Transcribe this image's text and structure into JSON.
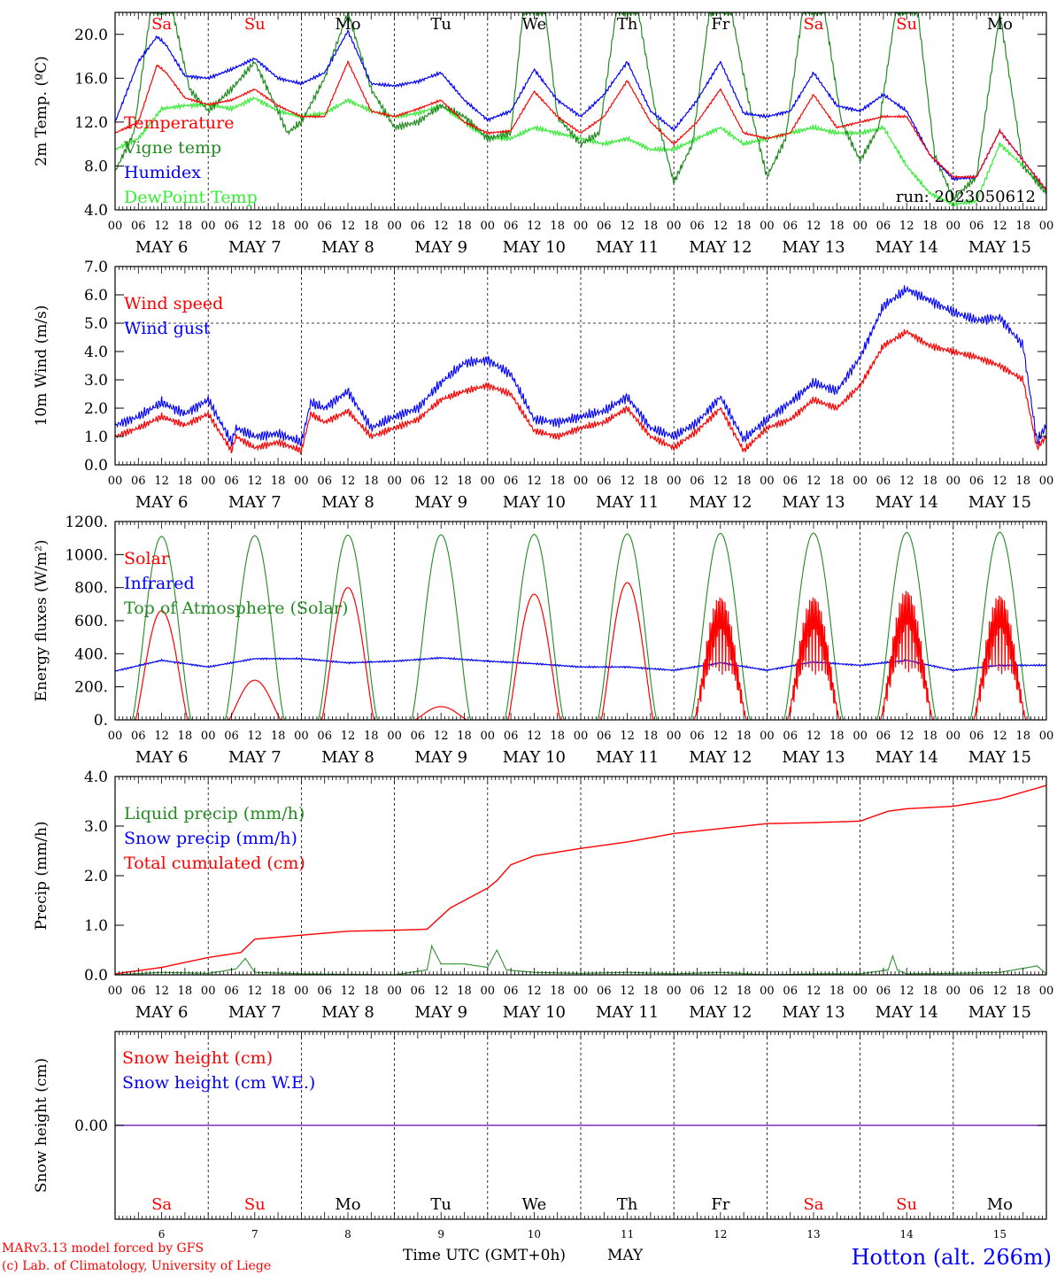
{
  "colors": {
    "red": "#ff0000",
    "green": "#228b22",
    "blue": "#0000ff",
    "light_green": "#33ee33",
    "purple": "#7b2fbe",
    "black": "#000000"
  },
  "days": [
    "Sa",
    "Su",
    "Mo",
    "Tu",
    "We",
    "Th",
    "Fr",
    "Sa",
    "Su",
    "Mo"
  ],
  "weekend_days": [
    0,
    1,
    7,
    8
  ],
  "day_numbers": [
    "6",
    "7",
    "8",
    "9",
    "10",
    "11",
    "12",
    "13",
    "14",
    "15"
  ],
  "date_labels": [
    "MAY  6",
    "MAY  7",
    "MAY  8",
    "MAY  9",
    "MAY 10",
    "MAY 11",
    "MAY 12",
    "MAY 13",
    "MAY 14",
    "MAY 15"
  ],
  "hour_ticks": [
    "00",
    "06",
    "12",
    "18"
  ],
  "footer": {
    "model_line1": "MARv3.13 model forced by GFS",
    "model_line2": "(c) Lab. of Climatology, University of Liege",
    "time_axis_label": "Time UTC (GMT+0h)",
    "month": "MAY",
    "station": "Hotton (alt. 266m)"
  },
  "chart_data": [
    {
      "type": "line",
      "id": "temperature",
      "ylabel": "2m Temp. (ºC)",
      "ylim": [
        4.0,
        22.0
      ],
      "yticks": [
        "4.0",
        "8.0",
        "12.0",
        "16.0",
        "20.0"
      ],
      "ytick_values": [
        4,
        8,
        12,
        16,
        20
      ],
      "x_unit": "days since May 6 00 UTC",
      "xlim": [
        0,
        10
      ],
      "annotation": "run: 2023050612",
      "legend": [
        "Temperature",
        "Vigne temp",
        "Humidex",
        "DewPoint Temp"
      ],
      "series": [
        {
          "name": "Temperature",
          "color": "red",
          "x": [
            0,
            0.25,
            0.45,
            0.55,
            0.75,
            1.0,
            1.25,
            1.5,
            1.75,
            2.0,
            2.25,
            2.5,
            2.75,
            3.0,
            3.25,
            3.5,
            3.75,
            4.0,
            4.25,
            4.5,
            4.75,
            5.0,
            5.25,
            5.5,
            5.75,
            6.0,
            6.25,
            6.5,
            6.75,
            7.0,
            7.25,
            7.5,
            7.75,
            8.0,
            8.25,
            8.5,
            8.75,
            9.0,
            9.25,
            9.5,
            9.75,
            10.0
          ],
          "y": [
            11.0,
            12.0,
            17.2,
            16.5,
            14.2,
            13.6,
            14.0,
            15.0,
            13.5,
            12.5,
            12.5,
            17.5,
            13.0,
            12.5,
            13.2,
            14.0,
            12.0,
            11.0,
            11.2,
            14.8,
            12.5,
            11.0,
            12.5,
            15.8,
            12.0,
            10.0,
            12.0,
            15.0,
            11.0,
            10.5,
            11.0,
            14.5,
            11.5,
            12.0,
            12.5,
            12.5,
            9.0,
            7.0,
            7.0,
            11.2,
            8.5,
            5.8
          ]
        },
        {
          "name": "Vigne temp",
          "color": "green",
          "x": [
            0,
            0.2,
            0.38,
            0.5,
            0.62,
            0.8,
            1.0,
            1.25,
            1.5,
            1.75,
            1.85,
            2.0,
            2.25,
            2.5,
            2.75,
            3.0,
            3.25,
            3.5,
            3.75,
            4.0,
            4.25,
            4.38,
            4.5,
            4.62,
            4.75,
            5.0,
            5.2,
            5.38,
            5.5,
            5.62,
            5.8,
            6.0,
            6.2,
            6.38,
            6.5,
            6.62,
            6.8,
            7.0,
            7.2,
            7.38,
            7.5,
            7.62,
            7.8,
            8.0,
            8.2,
            8.38,
            8.5,
            8.62,
            8.8,
            9.0,
            9.25,
            9.5,
            9.75,
            10.0
          ],
          "y": [
            7.5,
            11.0,
            22.0,
            22.0,
            22.0,
            15.0,
            13.0,
            15.0,
            17.5,
            13.0,
            11.0,
            12.0,
            16.0,
            22.0,
            15.0,
            11.5,
            12.0,
            13.5,
            12.5,
            10.5,
            11.0,
            22.0,
            22.0,
            22.0,
            12.5,
            10.0,
            11.0,
            22.0,
            22.0,
            22.0,
            13.0,
            6.5,
            10.0,
            22.0,
            22.0,
            22.0,
            14.0,
            7.0,
            10.5,
            22.0,
            22.0,
            22.0,
            12.0,
            8.5,
            11.5,
            22.0,
            22.0,
            22.0,
            9.0,
            5.0,
            7.0,
            22.0,
            8.0,
            5.5
          ]
        },
        {
          "name": "Humidex",
          "color": "blue",
          "x": [
            0,
            0.25,
            0.45,
            0.55,
            0.75,
            1.0,
            1.25,
            1.5,
            1.75,
            2.0,
            2.25,
            2.5,
            2.75,
            3.0,
            3.25,
            3.5,
            3.75,
            4.0,
            4.25,
            4.5,
            4.75,
            5.0,
            5.25,
            5.5,
            5.75,
            6.0,
            6.25,
            6.5,
            6.75,
            7.0,
            7.25,
            7.5,
            7.75,
            8.0,
            8.25,
            8.5,
            8.75,
            9.0,
            9.25,
            9.5,
            9.75,
            10.0
          ],
          "y": [
            12.0,
            17.5,
            19.8,
            19.0,
            16.2,
            16.0,
            16.8,
            17.8,
            16.0,
            15.5,
            16.5,
            20.3,
            15.5,
            15.3,
            15.7,
            16.5,
            14.0,
            12.2,
            13.0,
            16.8,
            14.0,
            12.5,
            14.5,
            17.5,
            13.0,
            11.3,
            14.0,
            17.5,
            12.8,
            12.5,
            13.0,
            16.5,
            13.5,
            13.0,
            14.5,
            13.0,
            9.0,
            6.8,
            7.0,
            11.2,
            8.5,
            5.8
          ]
        },
        {
          "name": "DewPoint Temp",
          "color": "light_green",
          "x": [
            0,
            0.25,
            0.5,
            0.75,
            1.0,
            1.25,
            1.5,
            1.75,
            2.0,
            2.25,
            2.5,
            2.75,
            3.0,
            3.25,
            3.5,
            3.75,
            4.0,
            4.25,
            4.5,
            4.75,
            5.0,
            5.25,
            5.5,
            5.75,
            6.0,
            6.25,
            6.5,
            6.75,
            7.0,
            7.25,
            7.5,
            7.75,
            8.0,
            8.25,
            8.5,
            8.75,
            9.0,
            9.25,
            9.5,
            9.75,
            10.0
          ],
          "y": [
            9.5,
            10.5,
            13.2,
            13.5,
            13.6,
            13.2,
            14.2,
            13.0,
            12.5,
            12.8,
            14.0,
            13.0,
            12.5,
            12.8,
            13.5,
            12.0,
            10.5,
            10.5,
            11.5,
            11.0,
            10.5,
            10.0,
            10.5,
            9.5,
            9.5,
            10.5,
            11.5,
            10.0,
            10.5,
            11.0,
            11.5,
            11.0,
            11.0,
            11.5,
            8.0,
            5.5,
            4.5,
            4.8,
            10.0,
            8.0,
            5.8
          ]
        }
      ]
    },
    {
      "type": "line",
      "id": "wind",
      "ylabel": "10m Wind (m/s)",
      "ylim": [
        0.0,
        7.0
      ],
      "yticks": [
        "0.0",
        "1.0",
        "2.0",
        "3.0",
        "4.0",
        "5.0",
        "6.0",
        "7.0"
      ],
      "ytick_values": [
        0,
        1,
        2,
        3,
        4,
        5,
        6,
        7
      ],
      "reference_line": 5.0,
      "x_unit": "days since May 6 00 UTC",
      "xlim": [
        0,
        10
      ],
      "legend": [
        "Wind speed",
        "Wind gust"
      ],
      "series": [
        {
          "name": "Wind speed",
          "color": "red",
          "x": [
            0,
            0.25,
            0.5,
            0.75,
            1.0,
            1.25,
            1.3,
            1.5,
            1.75,
            2.0,
            2.1,
            2.25,
            2.5,
            2.75,
            3.0,
            3.25,
            3.5,
            3.75,
            4.0,
            4.25,
            4.5,
            4.75,
            5.0,
            5.25,
            5.5,
            5.75,
            6.0,
            6.25,
            6.5,
            6.75,
            7.0,
            7.25,
            7.5,
            7.75,
            8.0,
            8.25,
            8.5,
            8.75,
            9.0,
            9.25,
            9.5,
            9.75,
            9.9,
            10.0
          ],
          "y": [
            1.0,
            1.3,
            1.7,
            1.4,
            1.8,
            0.5,
            1.0,
            0.6,
            0.8,
            0.5,
            1.8,
            1.5,
            1.9,
            1.0,
            1.3,
            1.6,
            2.3,
            2.6,
            2.8,
            2.5,
            1.2,
            1.0,
            1.3,
            1.5,
            2.0,
            1.0,
            0.6,
            1.2,
            2.0,
            0.5,
            1.3,
            1.6,
            2.3,
            2.0,
            2.8,
            4.2,
            4.7,
            4.2,
            4.0,
            3.8,
            3.5,
            3.0,
            0.6,
            1.0
          ]
        },
        {
          "name": "Wind gust",
          "color": "blue",
          "x": [
            0,
            0.25,
            0.5,
            0.75,
            1.0,
            1.25,
            1.3,
            1.5,
            1.75,
            2.0,
            2.1,
            2.25,
            2.5,
            2.75,
            3.0,
            3.25,
            3.5,
            3.75,
            4.0,
            4.25,
            4.5,
            4.75,
            5.0,
            5.25,
            5.5,
            5.75,
            6.0,
            6.25,
            6.5,
            6.75,
            7.0,
            7.25,
            7.5,
            7.75,
            8.0,
            8.25,
            8.5,
            8.75,
            9.0,
            9.25,
            9.5,
            9.75,
            9.9,
            10.0
          ],
          "y": [
            1.4,
            1.7,
            2.2,
            1.8,
            2.3,
            0.8,
            1.3,
            1.0,
            1.1,
            0.8,
            2.2,
            2.0,
            2.6,
            1.3,
            1.7,
            2.0,
            2.9,
            3.6,
            3.7,
            3.2,
            1.6,
            1.5,
            1.7,
            1.9,
            2.4,
            1.3,
            1.0,
            1.5,
            2.4,
            0.9,
            1.6,
            2.2,
            2.9,
            2.6,
            3.8,
            5.6,
            6.2,
            5.8,
            5.4,
            5.1,
            5.2,
            4.2,
            0.8,
            1.4
          ]
        }
      ]
    },
    {
      "type": "line",
      "id": "energy",
      "ylabel": "Energy fluxes (W/m²)",
      "ylim": [
        0,
        1200
      ],
      "yticks": [
        "0.",
        "200.",
        "400.",
        "600.",
        "800.",
        "1000.",
        "1200."
      ],
      "ytick_values": [
        0,
        200,
        400,
        600,
        800,
        1000,
        1200
      ],
      "x_unit": "days since May 6 00 UTC",
      "xlim": [
        0,
        10
      ],
      "legend": [
        "Solar",
        "Infrared",
        "Top of Atmosphere (Solar)"
      ],
      "daily_peaks": {
        "solar": [
          660,
          240,
          800,
          80,
          760,
          830,
          760,
          760,
          800,
          770
        ],
        "top_of_atmosphere": [
          1110,
          1115,
          1118,
          1120,
          1122,
          1125,
          1128,
          1130,
          1133,
          1135
        ]
      },
      "series": [
        {
          "name": "Infrared",
          "color": "blue",
          "x": [
            0,
            0.5,
            1.0,
            1.5,
            2.0,
            2.5,
            3.0,
            3.5,
            4.0,
            4.5,
            5.0,
            5.5,
            6.0,
            6.5,
            7.0,
            7.5,
            8.0,
            8.5,
            9.0,
            9.5,
            10.0
          ],
          "y": [
            295,
            360,
            320,
            370,
            370,
            345,
            355,
            375,
            355,
            340,
            320,
            320,
            300,
            345,
            300,
            350,
            330,
            360,
            300,
            330,
            330
          ]
        }
      ]
    },
    {
      "type": "line",
      "id": "precip",
      "ylabel": "Precip (mm/h)",
      "ylim": [
        0.0,
        4.0
      ],
      "yticks": [
        "0.0",
        "1.0",
        "2.0",
        "3.0",
        "4.0"
      ],
      "ytick_values": [
        0,
        1,
        2,
        3,
        4
      ],
      "x_unit": "days since May 6 00 UTC",
      "xlim": [
        0,
        10
      ],
      "legend": [
        "Liquid precip (mm/h)",
        "Snow precip (mm/h)",
        "Total cumulated (cm)"
      ],
      "series": [
        {
          "name": "Total cumulated (cm)",
          "color": "red",
          "x": [
            0,
            0.5,
            1.0,
            1.35,
            1.5,
            2.0,
            2.5,
            3.0,
            3.35,
            3.6,
            4.0,
            4.1,
            4.25,
            4.5,
            5.0,
            5.5,
            6.0,
            6.5,
            7.0,
            7.5,
            8.0,
            8.3,
            8.5,
            9.0,
            9.5,
            10.0
          ],
          "y": [
            0.02,
            0.15,
            0.35,
            0.45,
            0.72,
            0.8,
            0.88,
            0.9,
            0.92,
            1.35,
            1.75,
            1.9,
            2.22,
            2.4,
            2.55,
            2.68,
            2.85,
            2.95,
            3.05,
            3.07,
            3.1,
            3.3,
            3.35,
            3.4,
            3.55,
            3.82
          ]
        },
        {
          "name": "Liquid precip (mm/h)",
          "color": "green",
          "x": [
            0,
            0.5,
            1.0,
            1.3,
            1.4,
            1.5,
            2.0,
            3.0,
            3.35,
            3.4,
            3.5,
            3.75,
            4.0,
            4.1,
            4.2,
            4.5,
            5.0,
            5.5,
            6.0,
            6.5,
            7.0,
            7.5,
            8.0,
            8.3,
            8.35,
            8.4,
            8.5,
            9.0,
            9.5,
            9.9,
            10.0
          ],
          "y": [
            0.0,
            0.05,
            0.03,
            0.12,
            0.33,
            0.05,
            0.02,
            0.0,
            0.1,
            0.58,
            0.22,
            0.22,
            0.15,
            0.5,
            0.1,
            0.05,
            0.03,
            0.05,
            0.02,
            0.05,
            0.0,
            0.02,
            0.02,
            0.1,
            0.38,
            0.1,
            0.02,
            0.03,
            0.05,
            0.18,
            0.02
          ]
        }
      ]
    },
    {
      "type": "line",
      "id": "snow",
      "ylabel": "Snow height (cm)",
      "ylim": [
        -1,
        1
      ],
      "yticks": [
        "0.00"
      ],
      "ytick_values": [
        0
      ],
      "x_unit": "days since May 6 00 UTC",
      "xlim": [
        0,
        10
      ],
      "legend": [
        "Snow height (cm)",
        "Snow height (cm W.E.)"
      ],
      "series": [
        {
          "name": "Snow height (cm)",
          "color": "purple",
          "x": [
            0,
            10
          ],
          "y": [
            0,
            0
          ]
        }
      ]
    }
  ]
}
